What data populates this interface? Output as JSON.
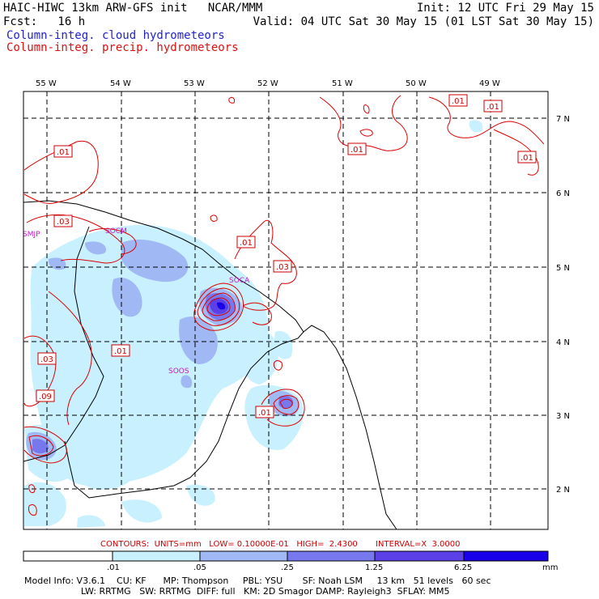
{
  "header": {
    "title_left": "HAIC-HIWC 13km ARW-GFS init   NCAR/MMM",
    "init": "Init: 12 UTC Fri 29 May 15",
    "fcst": "Fcst:   16 h",
    "valid": "Valid: 04 UTC Sat 30 May 15 (01 LST Sat 30 May 15)",
    "field1": "Column-integ. cloud hydrometeors",
    "field2": "Column-integ. precip. hydrometeors",
    "field1_color": "#2222cc",
    "field2_color": "#dd1111"
  },
  "map": {
    "lon_labels": [
      "55 W",
      "54 W",
      "53 W",
      "52 W",
      "51 W",
      "50 W",
      "49 W"
    ],
    "lat_labels": [
      "7 N",
      "6 N",
      "5 N",
      "4 N",
      "3 N",
      "2 N"
    ],
    "stations": [
      "SMJP",
      "SOCM",
      "SOCA",
      "SOOS"
    ],
    "contour_labels": [
      ".01",
      ".01",
      ".01",
      ".01",
      ".03",
      ".01",
      ".03",
      ".01",
      ".03",
      ".09",
      ".01"
    ],
    "fill_colors": [
      "#ffffff",
      "#c8f0ff",
      "#a0b8f4",
      "#7878ee",
      "#5a40e6",
      "#1a00e8"
    ],
    "contour_color": "#dd0000"
  },
  "contours_line": "CONTOURS:  UNITS=mm   LOW= 0.10000E-01   HIGH=  2.4300       INTERVAL=X  3.0000",
  "colorbar": {
    "labels": [
      ".01",
      ".05",
      ".25",
      "1.25",
      "6.25"
    ],
    "unit": "mm"
  },
  "footer": {
    "line1": "Model Info: V3.6.1    CU: KF      MP: Thompson     PBL: YSU       SF: Noah LSM     13 km   51 levels   60 sec",
    "line2": "                    LW: RRTMG   SW: RRTMG  DIFF: full   KM: 2D Smagor DAMP: Rayleigh3  SFLAY: MM5"
  }
}
